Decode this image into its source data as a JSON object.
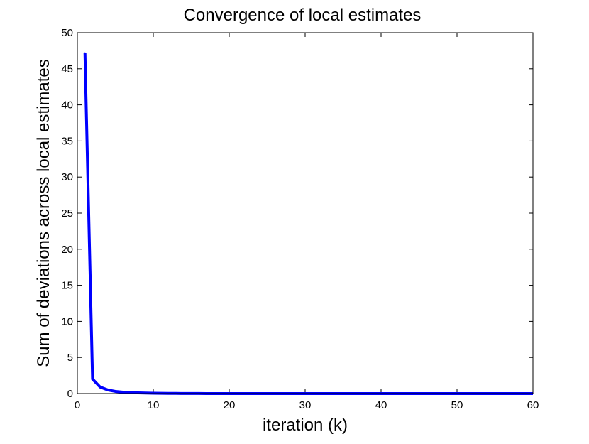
{
  "chart_data": {
    "type": "line",
    "title": "Convergence of local estimates",
    "xlabel": "iteration (k)",
    "ylabel": "Sum of deviations across local estimates",
    "xlim": [
      0,
      60
    ],
    "ylim": [
      0,
      50
    ],
    "xticks": [
      0,
      10,
      20,
      30,
      40,
      50,
      60
    ],
    "yticks": [
      0,
      5,
      10,
      15,
      20,
      25,
      30,
      35,
      40,
      45,
      50
    ],
    "grid": false,
    "legend": "none",
    "series": [
      {
        "color": "#0000ff",
        "x": [
          1,
          2,
          3,
          4,
          5,
          6,
          7,
          8,
          9,
          10,
          11,
          12,
          13,
          14,
          15,
          16,
          17,
          18,
          19,
          20,
          25,
          30,
          35,
          40,
          45,
          50,
          55,
          60
        ],
        "y": [
          47.2,
          2.0,
          0.9,
          0.5,
          0.3,
          0.2,
          0.14,
          0.1,
          0.07,
          0.05,
          0.04,
          0.03,
          0.02,
          0.015,
          0.01,
          0.008,
          0.006,
          0.005,
          0.004,
          0.003,
          0.001,
          0.0005,
          0.0002,
          0.0001,
          0.0001,
          0.0,
          0.0,
          0.0
        ]
      }
    ]
  }
}
